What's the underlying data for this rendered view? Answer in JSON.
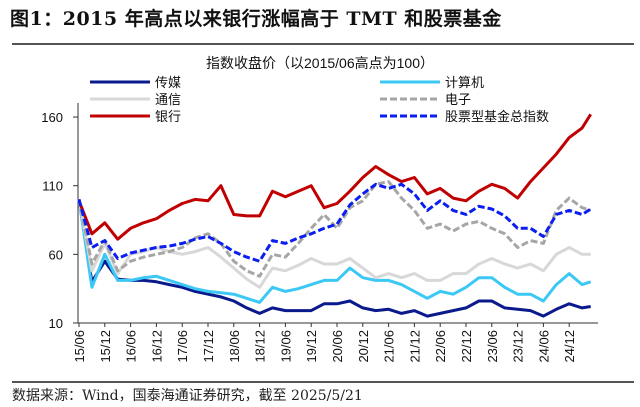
{
  "title": "图1：2015 年高点以来银行涨幅高于 TMT 和股票基金",
  "source": "数据来源：Wind，国泰海通证券研究，截至 2025/5/21",
  "chart_data": {
    "type": "line",
    "title": "",
    "subtitle": "指数收盘价（以2015/06高点为100）",
    "xlabel": "",
    "ylabel": "",
    "ylim": [
      10,
      160
    ],
    "yticks": [
      10,
      60,
      110,
      160
    ],
    "ytick_labels": [
      "10",
      "60",
      "110",
      "160"
    ],
    "xtick_labels": [
      "15/06",
      "15/12",
      "16/06",
      "16/12",
      "17/06",
      "17/12",
      "18/06",
      "18/12",
      "19/06",
      "19/12",
      "20/06",
      "20/12",
      "21/06",
      "21/12",
      "22/06",
      "22/12",
      "23/06",
      "23/12",
      "24/06",
      "24/12"
    ],
    "grid": false,
    "legend_position": "top",
    "x": [
      "2015-06",
      "2015-09",
      "2015-12",
      "2016-03",
      "2016-06",
      "2016-09",
      "2016-12",
      "2017-03",
      "2017-06",
      "2017-09",
      "2017-12",
      "2018-03",
      "2018-06",
      "2018-09",
      "2018-12",
      "2019-03",
      "2019-06",
      "2019-09",
      "2019-12",
      "2020-03",
      "2020-06",
      "2020-09",
      "2020-12",
      "2021-03",
      "2021-06",
      "2021-09",
      "2021-12",
      "2022-03",
      "2022-06",
      "2022-09",
      "2022-12",
      "2023-03",
      "2023-06",
      "2023-09",
      "2023-12",
      "2024-03",
      "2024-06",
      "2024-09",
      "2024-12",
      "2025-03",
      "2025-05"
    ],
    "series": [
      {
        "name": "传媒",
        "color": "#0a1a8c",
        "style": "solid",
        "values": [
          100,
          40,
          55,
          42,
          41,
          41,
          40,
          38,
          36,
          33,
          31,
          29,
          26,
          21,
          17,
          21,
          19,
          19,
          19,
          24,
          24,
          26,
          21,
          19,
          20,
          17,
          19,
          15,
          17,
          19,
          21,
          26,
          26,
          21,
          20,
          19,
          15,
          20,
          24,
          21,
          22
        ]
      },
      {
        "name": "计算机",
        "color": "#3cc8f5",
        "style": "solid",
        "values": [
          100,
          36,
          60,
          41,
          41,
          43,
          44,
          41,
          38,
          35,
          33,
          32,
          31,
          28,
          25,
          36,
          33,
          35,
          38,
          41,
          41,
          50,
          43,
          41,
          41,
          38,
          33,
          28,
          33,
          31,
          36,
          43,
          43,
          36,
          31,
          31,
          26,
          38,
          46,
          38,
          40
        ]
      },
      {
        "name": "通信",
        "color": "#d8d8d8",
        "style": "solid",
        "values": [
          100,
          48,
          68,
          46,
          60,
          62,
          65,
          62,
          60,
          62,
          65,
          58,
          50,
          42,
          36,
          50,
          48,
          52,
          57,
          53,
          53,
          57,
          50,
          43,
          46,
          43,
          46,
          41,
          41,
          46,
          46,
          53,
          57,
          53,
          50,
          53,
          48,
          60,
          65,
          60,
          60
        ]
      },
      {
        "name": "电子",
        "color": "#a6a6a6",
        "style": "dashed",
        "values": [
          100,
          53,
          70,
          48,
          55,
          58,
          60,
          62,
          65,
          72,
          75,
          68,
          55,
          48,
          44,
          60,
          58,
          68,
          79,
          89,
          79,
          94,
          99,
          111,
          113,
          101,
          92,
          79,
          82,
          77,
          82,
          84,
          79,
          75,
          65,
          70,
          68,
          92,
          101,
          94,
          92
        ]
      },
      {
        "name": "银行",
        "color": "#c00000",
        "style": "solid",
        "values": [
          99,
          75,
          83,
          71,
          79,
          83,
          86,
          92,
          97,
          100,
          99,
          110,
          89,
          88,
          88,
          106,
          102,
          106,
          110,
          94,
          97,
          106,
          116,
          124,
          118,
          113,
          116,
          104,
          108,
          101,
          99,
          106,
          111,
          108,
          101,
          113,
          123,
          133,
          145,
          152,
          162
        ]
      },
      {
        "name": "股票型基金总指数",
        "color": "#0a1ef0",
        "style": "dashed",
        "values": [
          100,
          65,
          70,
          57,
          61,
          63,
          65,
          66,
          68,
          71,
          73,
          68,
          62,
          58,
          55,
          70,
          68,
          72,
          75,
          79,
          82,
          96,
          104,
          111,
          108,
          111,
          104,
          92,
          99,
          92,
          89,
          95,
          93,
          88,
          79,
          79,
          73,
          89,
          92,
          89,
          93
        ]
      }
    ]
  }
}
